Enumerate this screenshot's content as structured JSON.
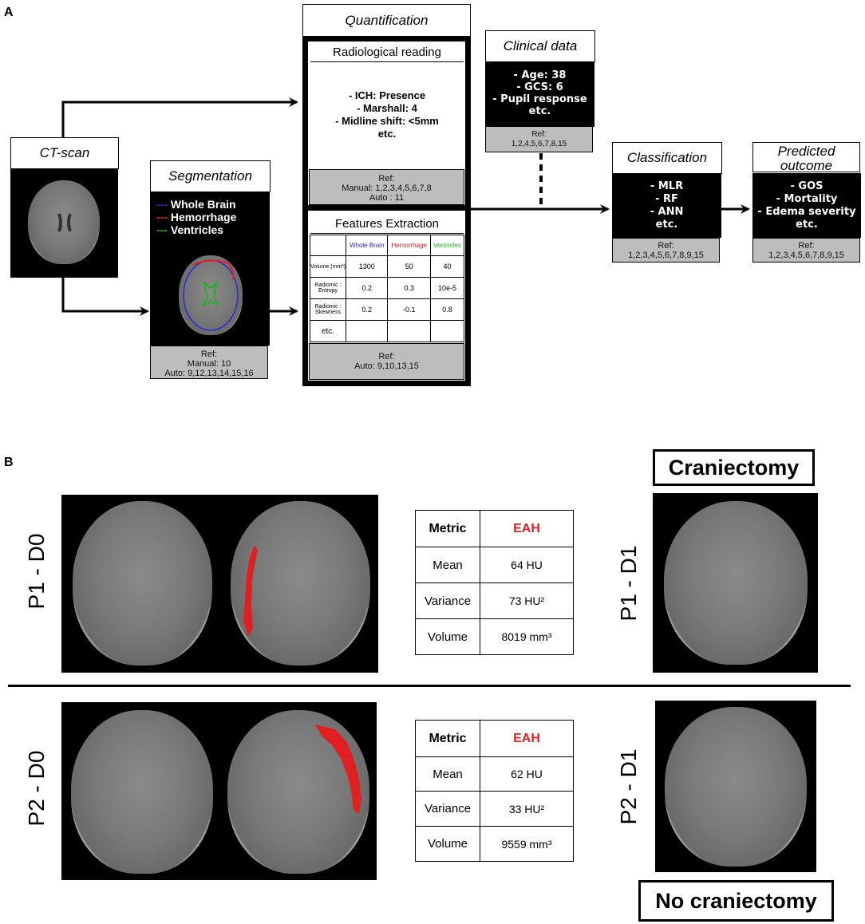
{
  "panel_a": {
    "letter": "A",
    "ct_scan": {
      "title": "CT-scan"
    },
    "segmentation": {
      "title": "Segmentation",
      "legend": [
        {
          "dash": "---",
          "label": "Whole Brain",
          "color": "#2b2bd6"
        },
        {
          "dash": "---",
          "label": "Hemorrhage",
          "color": "#e02020"
        },
        {
          "dash": "---",
          "label": "Ventricles",
          "color": "#22b022"
        }
      ],
      "ref": [
        "Ref:",
        "Manual: 10",
        "Auto: 9,12,13,14,15,16"
      ]
    },
    "quantification": {
      "title": "Quantification",
      "radiological": {
        "title": "Radiological reading",
        "lines": [
          "- ICH: Presence",
          "- Marshall: 4",
          "- Midline shift: <5mm",
          "etc."
        ],
        "ref": [
          "Ref:",
          "Manual: 1,2,3,4,5,6,7,8",
          "Auto : 11"
        ]
      },
      "features": {
        "title": "Features Extraction",
        "columns": [
          {
            "label": "Whole Brain",
            "color": "#2b2bd6"
          },
          {
            "label": "Hemorrhage",
            "color": "#e02020"
          },
          {
            "label": "Ventricles",
            "color": "#22b022"
          }
        ],
        "rows": [
          {
            "label": "Volume (mm³)",
            "values": [
              "1300",
              "50",
              "40"
            ]
          },
          {
            "label": "Radiomic : Entropy",
            "values": [
              "0.2",
              "0.3",
              "10e-5"
            ]
          },
          {
            "label": "Radiomic : Skewness",
            "values": [
              "0.2",
              "-0.1",
              "0.8"
            ]
          },
          {
            "label": "etc.",
            "values": [
              "",
              "",
              ""
            ]
          }
        ],
        "ref": [
          "Ref:",
          "Auto: 9,10,13,15"
        ]
      }
    },
    "clinical": {
      "title": "Clinical data",
      "lines": [
        "- Age: 38",
        "- GCS: 6",
        "- Pupil response",
        "etc."
      ],
      "ref": [
        "Ref:",
        "1,2,4,5,6,7,8,15"
      ]
    },
    "classification": {
      "title": "Classification",
      "lines": [
        "- MLR",
        "- RF",
        "- ANN",
        "etc."
      ],
      "ref": [
        "Ref:",
        "1,2,3,4,5,6,7,8,9,15"
      ]
    },
    "predicted": {
      "title_lines": [
        "Predicted",
        "outcome"
      ],
      "lines": [
        "- GOS",
        "- Mortality",
        "- Edema severity",
        "etc."
      ],
      "ref": [
        "Ref:",
        "1,2,3,4,5,6,7,8,9,15"
      ]
    }
  },
  "panel_b": {
    "letter": "B",
    "p1": {
      "label_d0": "P1 - D0",
      "label_d1": "P1 - D1",
      "outcome": "Craniectomy",
      "table": {
        "header": [
          "Metric",
          "EAH"
        ],
        "rows": [
          [
            "Mean",
            "64 HU"
          ],
          [
            "Variance",
            "73 HU²"
          ],
          [
            "Volume",
            "8019 mm³"
          ]
        ]
      }
    },
    "p2": {
      "label_d0": "P2 - D0",
      "label_d1": "P2 - D1",
      "outcome": "No craniectomy",
      "table": {
        "header": [
          "Metric",
          "EAH"
        ],
        "rows": [
          [
            "Mean",
            "62 HU"
          ],
          [
            "Variance",
            "33 HU²"
          ],
          [
            "Volume",
            "9559 mm³"
          ]
        ]
      }
    },
    "accent_red": "#e02020"
  }
}
